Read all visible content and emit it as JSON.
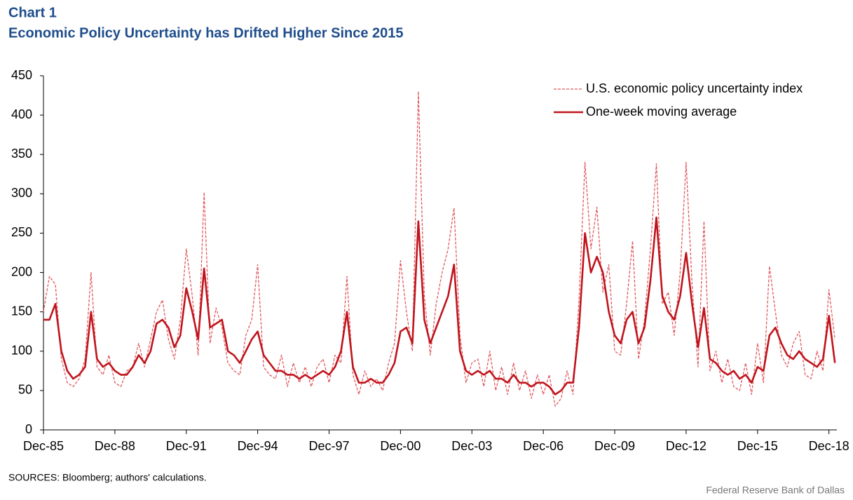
{
  "chart_data": {
    "type": "line",
    "title": "Chart 1",
    "subtitle": "Economic Policy Uncertainty has Drifted Higher Since 2015",
    "source": "SOURCES:  Bloomberg;  authors' calculations.",
    "credit": "Federal Reserve  Bank of Dallas",
    "x": [
      "1985-12",
      "1986-03",
      "1986-06",
      "1986-09",
      "1986-12",
      "1987-03",
      "1987-06",
      "1987-09",
      "1987-12",
      "1988-03",
      "1988-06",
      "1988-09",
      "1988-12",
      "1989-03",
      "1989-06",
      "1989-09",
      "1989-12",
      "1990-03",
      "1990-06",
      "1990-09",
      "1990-12",
      "1991-03",
      "1991-06",
      "1991-09",
      "1991-12",
      "1992-03",
      "1992-06",
      "1992-09",
      "1992-12",
      "1993-03",
      "1993-06",
      "1993-09",
      "1993-12",
      "1994-03",
      "1994-06",
      "1994-09",
      "1994-12",
      "1995-03",
      "1995-06",
      "1995-09",
      "1995-12",
      "1996-03",
      "1996-06",
      "1996-09",
      "1996-12",
      "1997-03",
      "1997-06",
      "1997-09",
      "1997-12",
      "1998-03",
      "1998-06",
      "1998-09",
      "1998-12",
      "1999-03",
      "1999-06",
      "1999-09",
      "1999-12",
      "2000-03",
      "2000-06",
      "2000-09",
      "2000-12",
      "2001-03",
      "2001-06",
      "2001-09",
      "2001-12",
      "2002-03",
      "2002-06",
      "2002-09",
      "2002-12",
      "2003-03",
      "2003-06",
      "2003-09",
      "2003-12",
      "2004-03",
      "2004-06",
      "2004-09",
      "2004-12",
      "2005-03",
      "2005-06",
      "2005-09",
      "2005-12",
      "2006-03",
      "2006-06",
      "2006-09",
      "2006-12",
      "2007-03",
      "2007-06",
      "2007-09",
      "2007-12",
      "2008-03",
      "2008-06",
      "2008-09",
      "2008-12",
      "2009-03",
      "2009-06",
      "2009-09",
      "2009-12",
      "2010-03",
      "2010-06",
      "2010-09",
      "2010-12",
      "2011-03",
      "2011-06",
      "2011-09",
      "2011-12",
      "2012-03",
      "2012-06",
      "2012-09",
      "2012-12",
      "2013-03",
      "2013-06",
      "2013-09",
      "2013-12",
      "2014-03",
      "2014-06",
      "2014-09",
      "2014-12",
      "2015-03",
      "2015-06",
      "2015-09",
      "2015-12",
      "2016-03",
      "2016-06",
      "2016-09",
      "2016-12",
      "2017-03",
      "2017-06",
      "2017-09",
      "2017-12",
      "2018-03",
      "2018-06",
      "2018-09",
      "2018-12",
      "2019-03"
    ],
    "series": [
      {
        "name": "U.S. economic policy uncertainty index",
        "color": "#e05a60",
        "dashed": true,
        "values": [
          150,
          195,
          185,
          90,
          60,
          55,
          65,
          90,
          200,
          80,
          70,
          95,
          60,
          55,
          75,
          80,
          110,
          80,
          115,
          150,
          165,
          115,
          90,
          140,
          230,
          170,
          95,
          302,
          110,
          155,
          130,
          85,
          75,
          70,
          120,
          140,
          210,
          80,
          70,
          65,
          95,
          55,
          85,
          60,
          80,
          55,
          80,
          90,
          60,
          95,
          85,
          195,
          70,
          45,
          75,
          55,
          65,
          50,
          85,
          110,
          215,
          150,
          100,
          430,
          170,
          95,
          160,
          200,
          230,
          282,
          120,
          60,
          85,
          90,
          55,
          100,
          50,
          80,
          45,
          85,
          50,
          75,
          40,
          70,
          45,
          70,
          30,
          40,
          75,
          45,
          165,
          340,
          230,
          283,
          175,
          210,
          100,
          95,
          160,
          240,
          90,
          140,
          230,
          338,
          160,
          175,
          120,
          200,
          340,
          185,
          80,
          265,
          75,
          100,
          60,
          90,
          55,
          50,
          85,
          45,
          110,
          60,
          208,
          150,
          95,
          80,
          110,
          125,
          70,
          65,
          100,
          75,
          178,
          115
        ]
      },
      {
        "name": "One-week moving average",
        "color": "#c0141c",
        "dashed": false,
        "values": [
          140,
          140,
          160,
          100,
          75,
          65,
          70,
          80,
          150,
          90,
          80,
          85,
          75,
          70,
          70,
          80,
          95,
          85,
          100,
          135,
          140,
          130,
          105,
          120,
          180,
          150,
          115,
          205,
          130,
          135,
          140,
          100,
          95,
          85,
          100,
          115,
          125,
          95,
          85,
          75,
          75,
          70,
          70,
          65,
          70,
          65,
          70,
          75,
          70,
          80,
          100,
          150,
          80,
          60,
          60,
          65,
          60,
          60,
          70,
          85,
          125,
          130,
          110,
          265,
          140,
          110,
          130,
          150,
          170,
          210,
          100,
          75,
          70,
          75,
          70,
          75,
          65,
          65,
          60,
          70,
          60,
          60,
          55,
          60,
          60,
          55,
          45,
          50,
          60,
          60,
          130,
          250,
          200,
          220,
          200,
          150,
          120,
          110,
          140,
          150,
          110,
          130,
          190,
          270,
          170,
          150,
          140,
          170,
          225,
          160,
          105,
          155,
          90,
          85,
          75,
          70,
          75,
          65,
          70,
          60,
          80,
          75,
          120,
          130,
          110,
          95,
          90,
          100,
          90,
          85,
          80,
          90,
          145,
          85
        ]
      }
    ],
    "xlim": [
      "1985-12",
      "2019-04"
    ],
    "xticks": [
      {
        "value": "1985-12",
        "label": "Dec-85"
      },
      {
        "value": "1988-12",
        "label": "Dec-88"
      },
      {
        "value": "1991-12",
        "label": "Dec-91"
      },
      {
        "value": "1994-12",
        "label": "Dec-94"
      },
      {
        "value": "1997-12",
        "label": "Dec-97"
      },
      {
        "value": "2000-12",
        "label": "Dec-00"
      },
      {
        "value": "2003-12",
        "label": "Dec-03"
      },
      {
        "value": "2006-12",
        "label": "Dec-06"
      },
      {
        "value": "2009-12",
        "label": "Dec-09"
      },
      {
        "value": "2012-12",
        "label": "Dec-12"
      },
      {
        "value": "2015-12",
        "label": "Dec-15"
      },
      {
        "value": "2018-12",
        "label": "Dec-18"
      }
    ],
    "ylim": [
      0,
      450
    ],
    "yticks": [
      0,
      50,
      100,
      150,
      200,
      250,
      300,
      350,
      400,
      450
    ],
    "legend": "top-right",
    "grid": false
  }
}
